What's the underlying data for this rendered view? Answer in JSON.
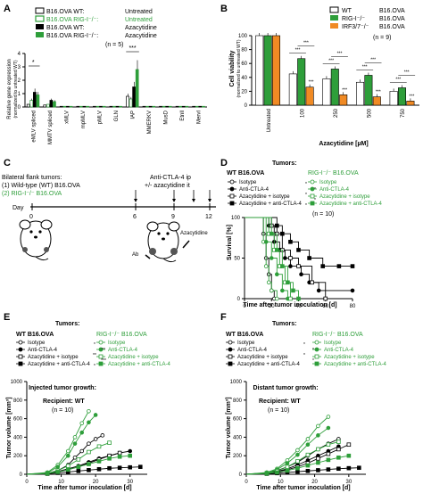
{
  "panels": {
    "A": {
      "letter": "A",
      "legend": [
        {
          "label": "B16.OVA WT:",
          "treat": "Untreated",
          "fill": "#ffffff",
          "stroke": "#000000",
          "label_color": "#000000"
        },
        {
          "label": "B16.OVA RIG-I⁻/⁻:",
          "treat": "Untreated",
          "fill": "#ffffff",
          "stroke": "#2e9e3a",
          "label_color": "#2e9e3a"
        },
        {
          "label": "B16.OVA WT:",
          "treat": "Azacytidine",
          "fill": "#000000",
          "stroke": "#000000",
          "label_color": "#000000"
        },
        {
          "label": "B16.OVA RIG-I⁻/⁻:",
          "treat": "Azacytidine",
          "fill": "#2e9e3a",
          "stroke": "#2e9e3a",
          "label_color": "#000000"
        }
      ],
      "n_label": "(n = 5)",
      "sig": [
        "*",
        "***"
      ],
      "chart_data": {
        "type": "bar",
        "ylabel": "Relative gene expression\n(normalized to untreated WT)",
        "ylim": [
          0,
          4
        ],
        "yticks": [
          0,
          1,
          2,
          3,
          4
        ],
        "categories": [
          "eMLV spliced",
          "MMTV spliced",
          "xMLV",
          "mpMLV",
          "pMLV",
          "GLN",
          "IAP",
          "MMERKV",
          "MusD",
          "Etnll",
          "MervI"
        ],
        "series": [
          {
            "name": "B16.OVA WT: Untreated",
            "values": [
              0.2,
              0.15,
              0.05,
              0.05,
              0.05,
              0.05,
              0.8,
              0.05,
              0.05,
              0.05,
              0.05
            ]
          },
          {
            "name": "B16.OVA RIG-I⁻/⁻: Untreated",
            "values": [
              0.5,
              0.2,
              0.05,
              0.05,
              0.05,
              0.05,
              0.6,
              0.05,
              0.05,
              0.05,
              0.05
            ]
          },
          {
            "name": "B16.OVA WT: Azacytidine",
            "values": [
              1.1,
              0.5,
              0.05,
              0.05,
              0.05,
              0.05,
              1.5,
              0.05,
              0.05,
              0.05,
              0.05
            ]
          },
          {
            "name": "B16.OVA RIG-I⁻/⁻: Azacytidine",
            "values": [
              0.9,
              0.4,
              0.05,
              0.05,
              0.05,
              0.05,
              2.8,
              0.05,
              0.05,
              0.05,
              0.05
            ]
          }
        ]
      }
    },
    "B": {
      "letter": "B",
      "legend": [
        {
          "label": "WT",
          "name": "B16.OVA",
          "fill": "#ffffff"
        },
        {
          "label": "RIG-I⁻/⁻",
          "name": "B16.OVA",
          "fill": "#2e9e3a"
        },
        {
          "label": "IRF3/7⁻/⁻",
          "name": "B16.OVA",
          "fill": "#f08a24"
        }
      ],
      "n_label": "(n = 9)",
      "sig": [
        "***",
        "***",
        "***",
        "***",
        "***",
        "***",
        "***",
        "***",
        "***",
        "***",
        "***",
        "***",
        "***"
      ],
      "chart_data": {
        "type": "bar",
        "xlabel": "Azacytidine [µM]",
        "ylabel": "Cell viability\n(normalized to untreated WT)",
        "ylim": [
          0,
          100
        ],
        "yticks": [
          0,
          20,
          40,
          60,
          80,
          100
        ],
        "categories": [
          "Untreated",
          "100",
          "250",
          "500",
          "750"
        ],
        "series": [
          {
            "name": "WT",
            "values": [
              100,
              45,
              38,
              33,
              20
            ]
          },
          {
            "name": "RIG-I⁻/⁻",
            "values": [
              100,
              67,
              52,
              43,
              25
            ]
          },
          {
            "name": "IRF3/7⁻/⁻",
            "values": [
              100,
              26,
              15,
              12,
              6
            ]
          }
        ]
      }
    },
    "C": {
      "letter": "C",
      "title": "Bilateral flank tumors:",
      "line1": "(1) Wild-type (WT) B16.OVA",
      "line2": "(2) RIG-I⁻/⁻ B16.OVA",
      "treatment": "Anti-CTLA-4 ip",
      "treatment2": "+/- azacytidine it",
      "day_label": "Day",
      "days": [
        "0",
        "6",
        "9",
        "12"
      ],
      "ab_label": "Ab",
      "aza_label": "Azacytidine"
    },
    "D": {
      "letter": "D",
      "tumors_label": "Tumors:",
      "wt_label": "WT B16.OVA",
      "rig_label": "RIG-I⁻/⁻ B16.OVA",
      "legend": [
        "Isotype",
        "Anti-CTLA-4",
        "Azacytidine + isotype",
        "Azacytidine + anti-CTLA-4"
      ],
      "n_label": "(n = 10)",
      "sig": [
        "*",
        "*",
        "*",
        "*",
        "*"
      ],
      "chart_data": {
        "type": "line",
        "xlabel": "Time after tumor inoculation [d]",
        "ylabel": "Survival [%]",
        "xlim": [
          0,
          80
        ],
        "ylim": [
          0,
          100
        ],
        "xticks": [
          0,
          20,
          40,
          60,
          80
        ],
        "yticks": [
          0,
          50,
          100
        ],
        "series": [
          {
            "name": "WT Isotype",
            "x": [
              0,
              14,
              16,
              18,
              20,
              22
            ],
            "y": [
              100,
              80,
              50,
              30,
              10,
              0
            ]
          },
          {
            "name": "WT Anti-CTLA-4",
            "x": [
              0,
              18,
              22,
              26,
              30,
              34,
              42,
              48,
              55,
              80
            ],
            "y": [
              100,
              90,
              70,
              60,
              50,
              40,
              30,
              20,
              10,
              10
            ]
          },
          {
            "name": "WT Azacytidine + isotype",
            "x": [
              0,
              20,
              24,
              28,
              34,
              40,
              50,
              60
            ],
            "y": [
              100,
              90,
              80,
              60,
              50,
              40,
              20,
              0
            ]
          },
          {
            "name": "WT Azacytidine + anti-CTLA-4",
            "x": [
              0,
              24,
              28,
              34,
              40,
              48,
              58,
              70,
              80
            ],
            "y": [
              100,
              90,
              80,
              70,
              60,
              50,
              40,
              40,
              40
            ]
          },
          {
            "name": "RIG Isotype",
            "x": [
              0,
              14,
              16,
              18,
              20,
              24
            ],
            "y": [
              100,
              70,
              40,
              20,
              10,
              0
            ]
          },
          {
            "name": "RIG Anti-CTLA-4",
            "x": [
              0,
              16,
              20,
              24,
              28,
              32
            ],
            "y": [
              100,
              70,
              50,
              30,
              10,
              0
            ]
          },
          {
            "name": "RIG Azacytidine + isotype",
            "x": [
              0,
              18,
              22,
              26,
              30,
              34
            ],
            "y": [
              100,
              80,
              60,
              40,
              20,
              0
            ]
          },
          {
            "name": "RIG Azacytidine + anti-CTLA-4",
            "x": [
              0,
              20,
              24,
              28,
              32,
              36,
              40
            ],
            "y": [
              100,
              80,
              60,
              40,
              20,
              10,
              0
            ]
          }
        ]
      }
    },
    "E": {
      "letter": "E",
      "tumors_label": "Tumors:",
      "wt_label": "WT B16.OVA",
      "rig_label": "RIG-I⁻/⁻ B16.OVA",
      "legend": [
        "Isotype",
        "Anti-CTLA-4",
        "Azacytidine + isotype",
        "Azacytidine + anti-CTLA-4"
      ],
      "sig": [
        "*",
        "**",
        "**",
        "***",
        "*"
      ],
      "subtitle": "Injected tumor growth:",
      "recipient": "Recipient: WT",
      "n_label": "(n = 10)",
      "chart_data": {
        "type": "line",
        "xlabel": "Time after tumor inoculation [d]",
        "ylabel": "Tumor volume [mm³]",
        "xlim": [
          0,
          35
        ],
        "ylim": [
          0,
          1000
        ],
        "xticks": [
          0,
          10,
          20,
          30
        ],
        "yticks": [
          0,
          200,
          400,
          600,
          800,
          1000
        ],
        "series": [
          {
            "name": "WT Isotype",
            "x": [
              0,
              6,
              9,
              12,
              14,
              16,
              18,
              20,
              22
            ],
            "y": [
              0,
              10,
              40,
              100,
              180,
              250,
              330,
              380,
              420
            ]
          },
          {
            "name": "WT Anti-CTLA-4",
            "x": [
              0,
              6,
              9,
              12,
              15,
              18,
              21,
              24,
              27,
              30
            ],
            "y": [
              0,
              10,
              30,
              60,
              90,
              130,
              170,
              200,
              230,
              250
            ]
          },
          {
            "name": "WT Azacytidine + isotype",
            "x": [
              0,
              6,
              9,
              12,
              15,
              18,
              21,
              24,
              27
            ],
            "y": [
              0,
              10,
              25,
              50,
              80,
              120,
              160,
              200,
              230
            ]
          },
          {
            "name": "WT Azacytidine + anti-CTLA-4",
            "x": [
              0,
              6,
              9,
              12,
              15,
              18,
              21,
              24,
              27,
              30,
              33
            ],
            "y": [
              0,
              5,
              15,
              25,
              35,
              45,
              55,
              65,
              70,
              75,
              80
            ]
          },
          {
            "name": "RIG Isotype",
            "x": [
              0,
              6,
              9,
              12,
              14,
              16,
              18
            ],
            "y": [
              0,
              20,
              100,
              250,
              400,
              550,
              680
            ]
          },
          {
            "name": "RIG Anti-CTLA-4",
            "x": [
              0,
              6,
              9,
              12,
              14,
              16,
              18,
              20
            ],
            "y": [
              0,
              15,
              80,
              200,
              330,
              450,
              560,
              640
            ]
          },
          {
            "name": "RIG Azacytidine + isotype",
            "x": [
              0,
              6,
              9,
              12,
              15,
              18,
              21,
              24
            ],
            "y": [
              0,
              10,
              40,
              90,
              160,
              240,
              300,
              340
            ]
          },
          {
            "name": "RIG Azacytidine + anti-CTLA-4",
            "x": [
              0,
              6,
              9,
              12,
              15,
              18,
              21,
              24,
              27,
              30
            ],
            "y": [
              0,
              8,
              25,
              50,
              80,
              110,
              140,
              170,
              190,
              200
            ]
          }
        ]
      }
    },
    "F": {
      "letter": "F",
      "tumors_label": "Tumors:",
      "wt_label": "WT B16.OVA",
      "rig_label": "RIG-I⁻/⁻ B16.OVA",
      "legend": [
        "Isotype",
        "Anti-CTLA-4",
        "Azacytidine + isotype",
        "Azacytidine + anti-CTLA-4"
      ],
      "sig": [
        "*",
        "*",
        "*",
        "*"
      ],
      "subtitle": "Distant tumor growth:",
      "recipient": "Recipient: WT",
      "n_label": "(n = 10)",
      "chart_data": {
        "type": "line",
        "xlabel": "Time after tumor inoculation [d]",
        "ylabel": "Tumor volume [mm³]",
        "xlim": [
          0,
          35
        ],
        "ylim": [
          0,
          1000
        ],
        "xticks": [
          0,
          10,
          20,
          30
        ],
        "yticks": [
          0,
          200,
          400,
          600,
          800,
          1000
        ],
        "series": [
          {
            "name": "WT Isotype",
            "x": [
              0,
              6,
              9,
              12,
              15,
              18,
              21,
              24,
              27
            ],
            "y": [
              0,
              15,
              40,
              80,
              130,
              200,
              270,
              330,
              380
            ]
          },
          {
            "name": "WT Anti-CTLA-4",
            "x": [
              0,
              6,
              9,
              12,
              15,
              18,
              21,
              24,
              27
            ],
            "y": [
              0,
              12,
              30,
              60,
              100,
              150,
              200,
              250,
              300
            ]
          },
          {
            "name": "WT Azacytidine + isotype",
            "x": [
              0,
              6,
              9,
              12,
              15,
              18,
              21,
              24,
              27,
              30
            ],
            "y": [
              0,
              10,
              25,
              50,
              80,
              120,
              170,
              220,
              270,
              320
            ]
          },
          {
            "name": "WT Azacytidine + anti-CTLA-4",
            "x": [
              0,
              6,
              9,
              12,
              15,
              18,
              21,
              24,
              27,
              30,
              33
            ],
            "y": [
              0,
              5,
              12,
              20,
              28,
              36,
              44,
              52,
              60,
              66,
              70
            ]
          },
          {
            "name": "RIG Isotype",
            "x": [
              0,
              6,
              9,
              12,
              15,
              18,
              21,
              24
            ],
            "y": [
              0,
              20,
              60,
              150,
              260,
              380,
              520,
              620
            ]
          },
          {
            "name": "RIG Anti-CTLA-4",
            "x": [
              0,
              6,
              9,
              12,
              15,
              18,
              21,
              24
            ],
            "y": [
              0,
              15,
              50,
              120,
              210,
              320,
              420,
              500
            ]
          },
          {
            "name": "RIG Azacytidine + isotype",
            "x": [
              0,
              6,
              9,
              12,
              15,
              18,
              21,
              24,
              27
            ],
            "y": [
              0,
              12,
              35,
              80,
              140,
              210,
              270,
              320,
              350
            ]
          },
          {
            "name": "RIG Azacytidine + anti-CTLA-4",
            "x": [
              0,
              6,
              9,
              12,
              15,
              18,
              21,
              24,
              27,
              30
            ],
            "y": [
              0,
              8,
              20,
              40,
              65,
              95,
              125,
              155,
              180,
              200
            ]
          }
        ]
      }
    }
  },
  "colors": {
    "green": "#2e9e3a",
    "orange": "#f08a24",
    "black": "#000000"
  }
}
